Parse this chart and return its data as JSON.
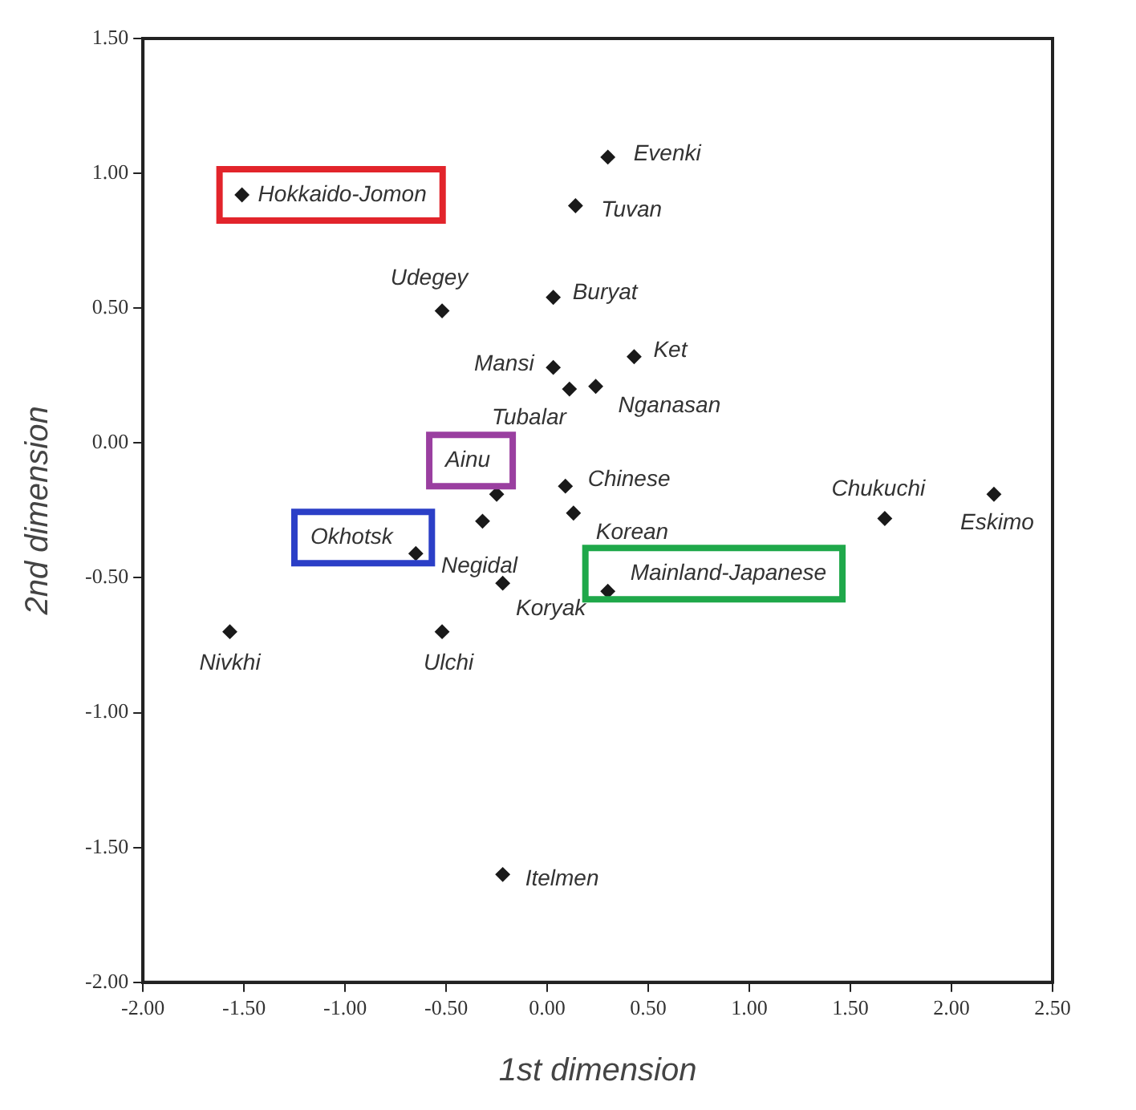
{
  "chart_data": {
    "type": "scatter",
    "xlabel": "1st dimension",
    "ylabel": "2nd dimension",
    "marker": "diamond",
    "grid": false,
    "legend": false,
    "xlim": [
      -2,
      2.5
    ],
    "ylim": [
      -2,
      1.5
    ],
    "xticks": [
      {
        "value": -2,
        "label": "-2.00"
      },
      {
        "value": -1.5,
        "label": "-1.50"
      },
      {
        "value": -1,
        "label": "-1.00"
      },
      {
        "value": -0.5,
        "label": "-0.50"
      },
      {
        "value": 0,
        "label": "0.00"
      },
      {
        "value": 0.5,
        "label": "0.50"
      },
      {
        "value": 1,
        "label": "1.00"
      },
      {
        "value": 1.5,
        "label": "1.50"
      },
      {
        "value": 2,
        "label": "2.00"
      },
      {
        "value": 2.5,
        "label": "2.50"
      }
    ],
    "yticks": [
      {
        "value": -2,
        "label": "-2.00"
      },
      {
        "value": -1.5,
        "label": "-1.50"
      },
      {
        "value": -1,
        "label": "-1.00"
      },
      {
        "value": -0.5,
        "label": "-0.50"
      },
      {
        "value": 0,
        "label": "0.00"
      },
      {
        "value": 0.5,
        "label": "0.50"
      },
      {
        "value": 1,
        "label": "1.00"
      },
      {
        "value": 1.5,
        "label": "1.50"
      }
    ],
    "series": [
      {
        "color": "#1a1a1a",
        "x": [
          -1.51,
          0.3,
          0.14,
          -0.52,
          0.03,
          0.03,
          0.43,
          0.11,
          0.24,
          -0.25,
          0.09,
          0.13,
          -0.32,
          -0.65,
          -0.22,
          0.3,
          1.67,
          2.21,
          -1.57,
          -0.52,
          -0.22
        ],
        "values": [
          0.92,
          1.06,
          0.88,
          0.49,
          0.54,
          0.28,
          0.32,
          0.2,
          0.21,
          -0.19,
          -0.16,
          -0.26,
          -0.29,
          -0.41,
          -0.52,
          -0.55,
          -0.28,
          -0.19,
          -0.7,
          -0.7,
          -1.6
        ]
      }
    ],
    "annotations": [
      {
        "text": "Hokkaido-Jomon",
        "x": -1.51,
        "y": 0.92
      },
      {
        "text": "Evenki",
        "x": 0.3,
        "y": 1.06
      },
      {
        "text": "Tuvan",
        "x": 0.14,
        "y": 0.88
      },
      {
        "text": "Udegey",
        "x": -0.52,
        "y": 0.49
      },
      {
        "text": "Buryat",
        "x": 0.03,
        "y": 0.54
      },
      {
        "text": "Mansi",
        "x": 0.03,
        "y": 0.28
      },
      {
        "text": "Ket",
        "x": 0.43,
        "y": 0.32
      },
      {
        "text": "Tubalar",
        "x": 0.11,
        "y": 0.2
      },
      {
        "text": "Nganasan",
        "x": 0.24,
        "y": 0.21
      },
      {
        "text": "Ainu",
        "x": -0.25,
        "y": -0.19
      },
      {
        "text": "Chinese",
        "x": 0.09,
        "y": -0.16
      },
      {
        "text": "Korean",
        "x": 0.13,
        "y": -0.26
      },
      {
        "text": "Negidal",
        "x": -0.32,
        "y": -0.29
      },
      {
        "text": "Okhotsk",
        "x": -0.65,
        "y": -0.41
      },
      {
        "text": "Koryak",
        "x": -0.22,
        "y": -0.52
      },
      {
        "text": "Mainland-Japanese",
        "x": 0.3,
        "y": -0.55
      },
      {
        "text": "Chukuchi",
        "x": 1.67,
        "y": -0.28
      },
      {
        "text": "Eskimo",
        "x": 2.21,
        "y": -0.19
      },
      {
        "text": "Nivkhi",
        "x": -1.57,
        "y": -0.7
      },
      {
        "text": "Ulchi",
        "x": -0.52,
        "y": -0.7
      },
      {
        "text": "Itelmen",
        "x": -0.22,
        "y": -1.6
      }
    ]
  }
}
